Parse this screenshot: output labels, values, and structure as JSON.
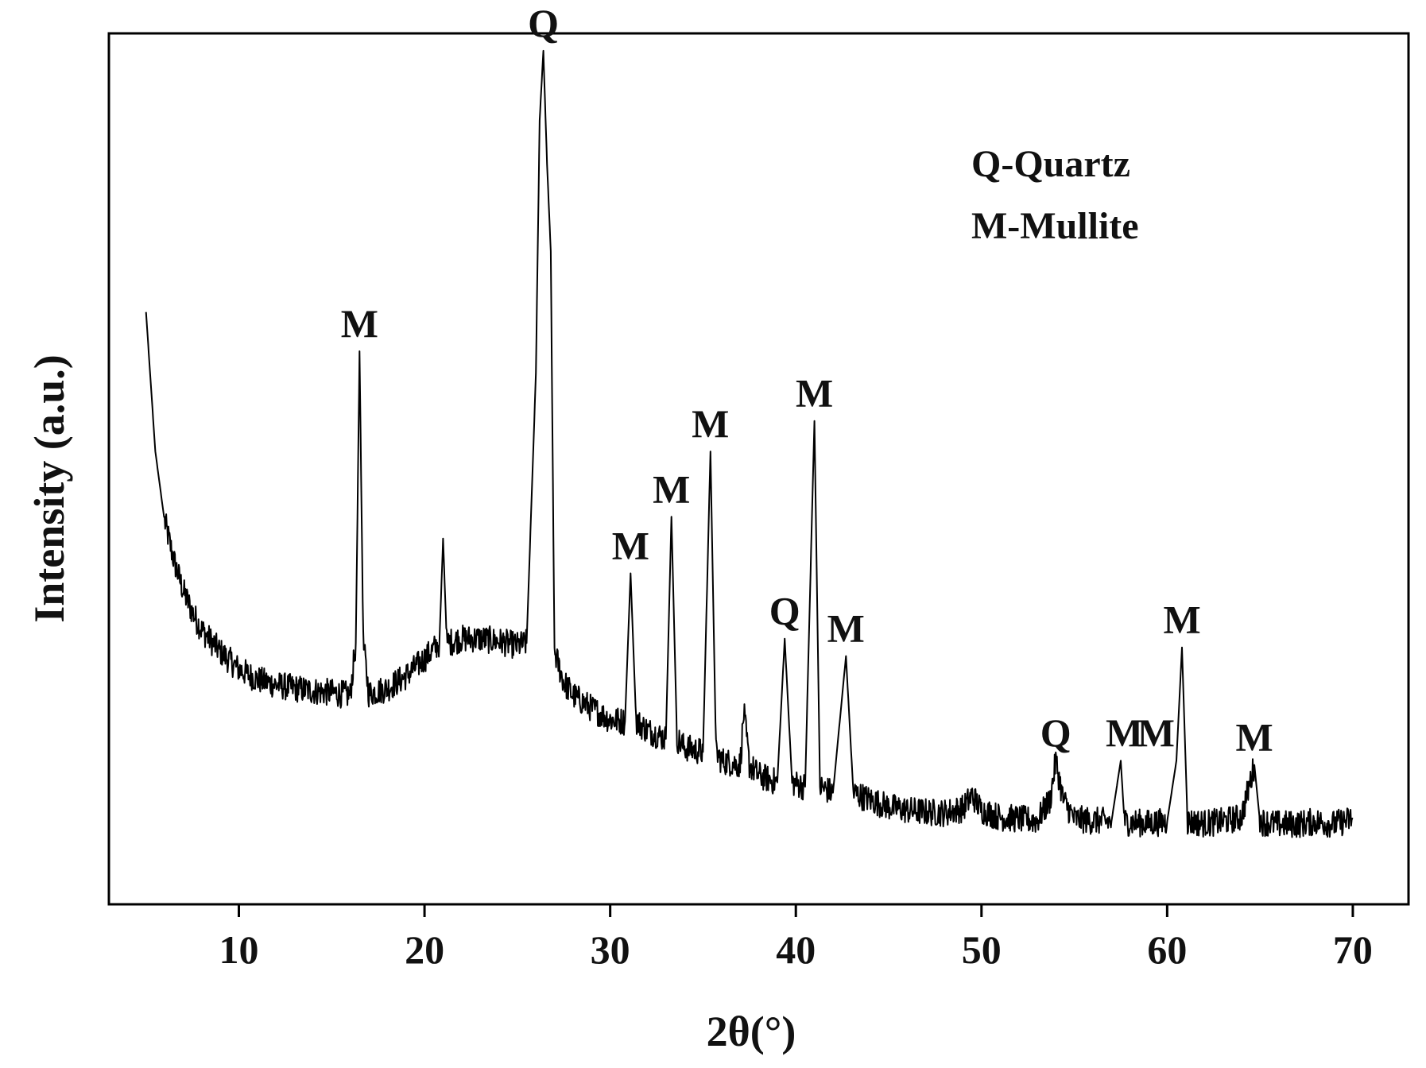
{
  "chart_data": {
    "type": "line",
    "title": "",
    "xlabel": "2θ(°)",
    "ylabel": "Intensity (a.u.)",
    "xlim": [
      3,
      73
    ],
    "ylim": [
      0,
      1000
    ],
    "x_ticks": [
      10,
      20,
      30,
      40,
      50,
      60,
      70
    ],
    "x_tick_labels": [
      "10",
      "20",
      "30",
      "40",
      "50",
      "60",
      "70"
    ],
    "y_ticks_shown": false,
    "grid": false,
    "legend": {
      "position": "top-right",
      "entries": [
        "Q-Quartz",
        "M-Mullite"
      ]
    },
    "series": [
      {
        "x": [
          5.0,
          5.5,
          6.0,
          6.5,
          7.0,
          7.5,
          8.0,
          9.0,
          10.0,
          11.0,
          12.0,
          13.0,
          14.0,
          15.0,
          16.0,
          16.3,
          16.5,
          16.7,
          17.0,
          18.0,
          19.0,
          20.0,
          20.8,
          21.0,
          21.2,
          22.0,
          23.0,
          24.0,
          25.0,
          25.5,
          26.0,
          26.2,
          26.4,
          26.6,
          26.8,
          27.0,
          27.5,
          28.0,
          29.0,
          30.0,
          30.8,
          31.1,
          31.4,
          32.0,
          33.0,
          33.3,
          33.6,
          34.0,
          35.0,
          35.4,
          35.7,
          36.0,
          37.0,
          37.2,
          37.5,
          38.0,
          39.0,
          39.4,
          39.8,
          40.5,
          41.0,
          41.3,
          42.0,
          42.7,
          43.1,
          44.0,
          45.0,
          46.0,
          47.0,
          48.0,
          49.0,
          49.5,
          50.0,
          51.0,
          52.0,
          53.0,
          53.7,
          54.0,
          54.4,
          55.0,
          56.0,
          57.0,
          57.5,
          57.7,
          58.0,
          59.0,
          60.0,
          60.5,
          60.8,
          61.1,
          62.0,
          63.0,
          64.0,
          64.7,
          65.0,
          66.0,
          67.0,
          68.0,
          69.0,
          70.0
        ],
        "y": [
          680,
          520,
          440,
          395,
          360,
          335,
          315,
          290,
          270,
          258,
          252,
          248,
          245,
          243,
          240,
          300,
          635,
          300,
          242,
          248,
          262,
          282,
          300,
          420,
          300,
          305,
          305,
          302,
          297,
          300,
          610,
          900,
          980,
          850,
          750,
          290,
          255,
          240,
          225,
          212,
          210,
          380,
          210,
          200,
          190,
          445,
          190,
          180,
          175,
          520,
          175,
          165,
          160,
          220,
          160,
          148,
          140,
          305,
          140,
          135,
          555,
          135,
          128,
          285,
          128,
          120,
          112,
          108,
          106,
          105,
          110,
          125,
          108,
          100,
          98,
          96,
          120,
          165,
          120,
          98,
          96,
          95,
          165,
          95,
          94,
          93,
          95,
          165,
          295,
          95,
          93,
          95,
          100,
          160,
          95,
          92,
          92,
          95,
          92,
          98
        ]
      }
    ],
    "annotations": [
      {
        "text": "Q",
        "x": 26.4,
        "y": 980
      },
      {
        "text": "M",
        "x": 16.5,
        "y": 635
      },
      {
        "text": "M",
        "x": 31.1,
        "y": 380
      },
      {
        "text": "M",
        "x": 33.3,
        "y": 445
      },
      {
        "text": "M",
        "x": 35.4,
        "y": 520
      },
      {
        "text": "M",
        "x": 41.0,
        "y": 555
      },
      {
        "text": "Q",
        "x": 39.4,
        "y": 305
      },
      {
        "text": "M",
        "x": 42.7,
        "y": 285
      },
      {
        "text": "Q",
        "x": 54.0,
        "y": 165
      },
      {
        "text": "M",
        "x": 57.7,
        "y": 165
      },
      {
        "text": "M",
        "x": 59.4,
        "y": 165
      },
      {
        "text": "M",
        "x": 60.8,
        "y": 295
      },
      {
        "text": "M",
        "x": 64.7,
        "y": 160
      }
    ]
  }
}
